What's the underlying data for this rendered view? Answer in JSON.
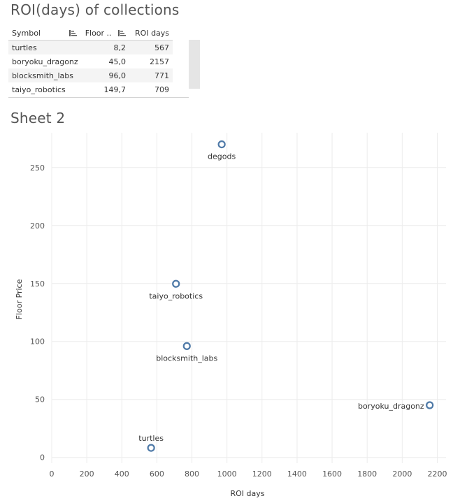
{
  "table_title": "ROI(days) of collections",
  "table": {
    "columns": [
      "Symbol",
      "Floor ..",
      "ROI days"
    ],
    "rows": [
      {
        "symbol": "turtles",
        "floor": "8,2",
        "roi": "567"
      },
      {
        "symbol": "boryoku_dragonz",
        "floor": "45,0",
        "roi": "2157"
      },
      {
        "symbol": "blocksmith_labs",
        "floor": "96,0",
        "roi": "771"
      },
      {
        "symbol": "taiyo_robotics",
        "floor": "149,7",
        "roi": "709"
      }
    ]
  },
  "sheet_title": "Sheet 2",
  "chart_data": {
    "type": "scatter",
    "xlabel": "ROI days",
    "ylabel": "Floor Price",
    "xlim": [
      0,
      2250
    ],
    "ylim": [
      -5,
      280
    ],
    "xticks": [
      0,
      200,
      400,
      600,
      800,
      1000,
      1200,
      1400,
      1600,
      1800,
      2000,
      2200
    ],
    "yticks": [
      0,
      50,
      100,
      150,
      200,
      250
    ],
    "grid": true,
    "marker_color": "#4e79a7",
    "points": [
      {
        "label": "degods",
        "x": 970,
        "y": 270,
        "label_pos": "below"
      },
      {
        "label": "taiyo_robotics",
        "x": 709,
        "y": 149.7,
        "label_pos": "below"
      },
      {
        "label": "blocksmith_labs",
        "x": 771,
        "y": 96,
        "label_pos": "below"
      },
      {
        "label": "boryoku_dragonz",
        "x": 2157,
        "y": 45,
        "label_pos": "left"
      },
      {
        "label": "turtles",
        "x": 567,
        "y": 8.2,
        "label_pos": "above"
      }
    ]
  }
}
